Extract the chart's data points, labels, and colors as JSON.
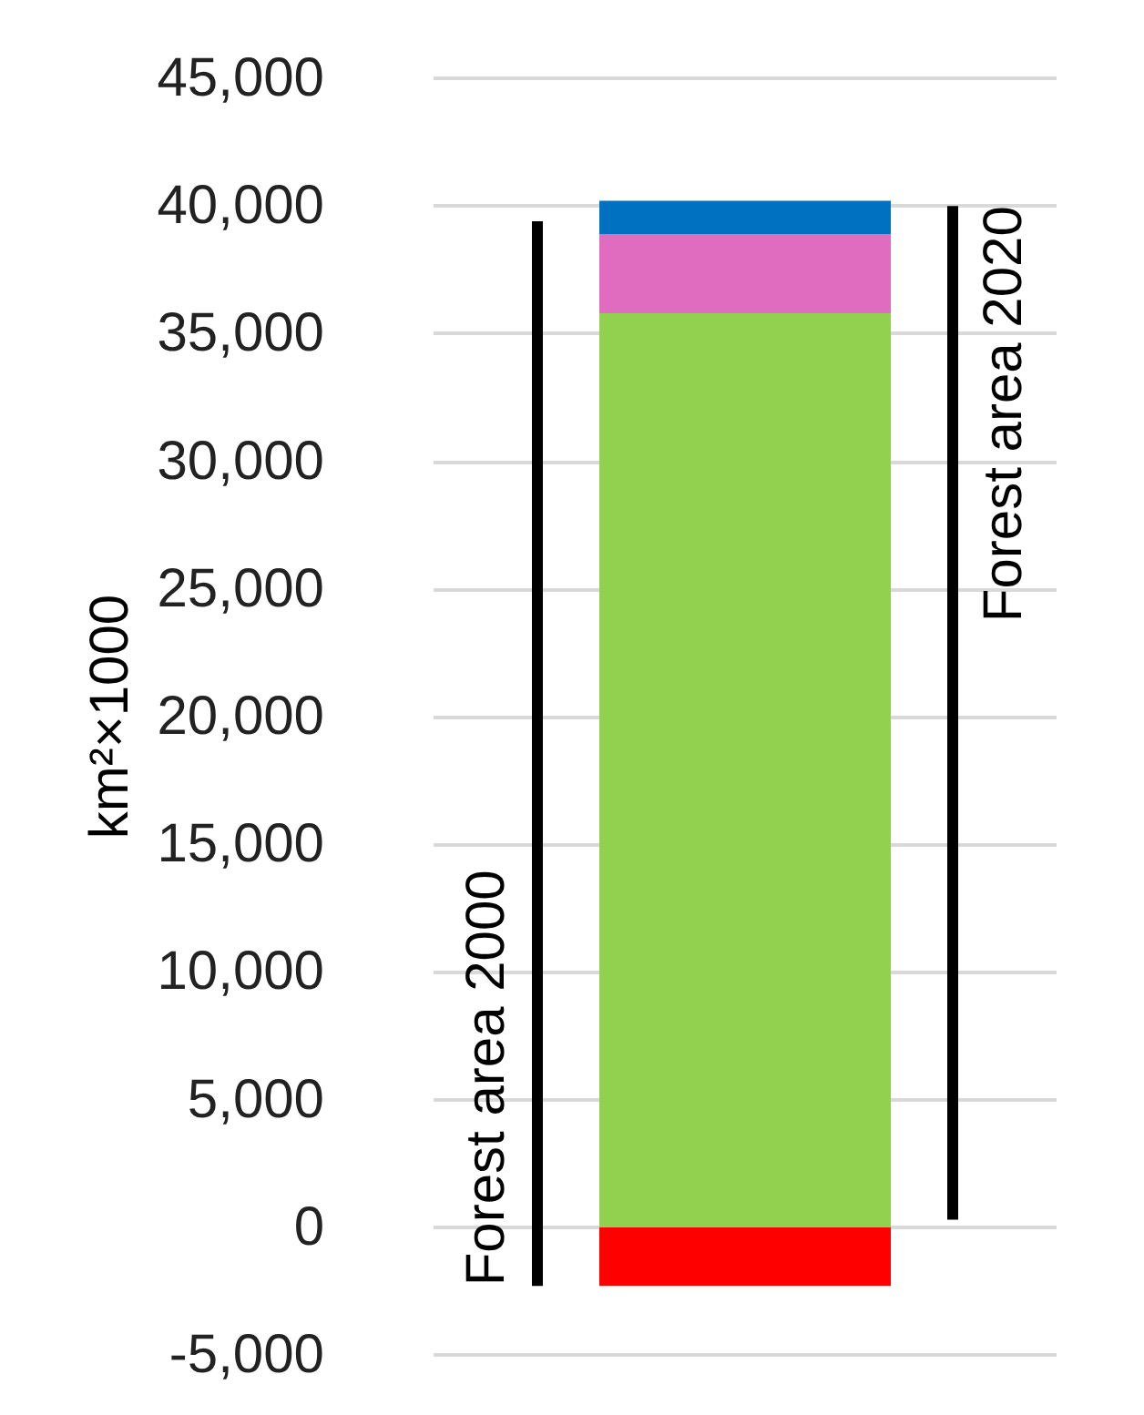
{
  "chart_data": {
    "type": "bar",
    "stacked": true,
    "ylabel": "km²×1000",
    "categories": [
      null,
      null,
      null
    ],
    "ylim": [
      -5000,
      45000
    ],
    "yticks": [
      {
        "value": -5000,
        "label": "-5,000"
      },
      0,
      {
        "value": 5000,
        "label": "5,000"
      },
      {
        "value": 10000,
        "label": "10,000"
      },
      {
        "value": 15000,
        "label": "15,000"
      },
      {
        "value": 20000,
        "label": "20,000"
      },
      {
        "value": 25000,
        "label": "25,000"
      },
      {
        "value": 30000,
        "label": "30,000"
      },
      {
        "value": 35000,
        "label": "35,000"
      },
      {
        "value": 40000,
        "label": "40,000"
      },
      {
        "value": 45000,
        "label": "45,000"
      }
    ],
    "grid": "y",
    "legend": false,
    "series": [
      {
        "name": "Forest area 2000",
        "color": "#000000",
        "base": [
          -2300,
          null,
          null
        ],
        "values": [
          41700,
          null,
          null
        ]
      },
      {
        "color": "#ff0000",
        "values": [
          null,
          -2300,
          null
        ]
      },
      {
        "color": "#92d050",
        "values": [
          null,
          35800,
          null
        ]
      },
      {
        "color": "#e06cc0",
        "values": [
          null,
          3100,
          null
        ]
      },
      {
        "color": "#0070c0",
        "values": [
          null,
          1300,
          null
        ]
      },
      {
        "name": "Forest area 2020",
        "color": "#000000",
        "base": [
          null,
          null,
          300
        ],
        "values": [
          null,
          null,
          39700
        ]
      }
    ]
  }
}
